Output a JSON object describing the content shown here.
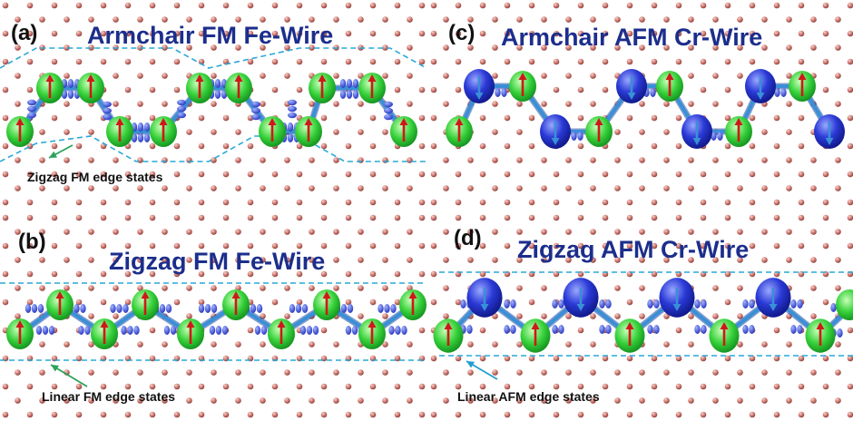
{
  "panels": {
    "a": {
      "label": "(a)",
      "title": "Armchair FM Fe-Wire",
      "note": "Zigzag FM edge states"
    },
    "b": {
      "label": "(b)",
      "title": "Zigzag FM Fe-Wire",
      "note": "Linear FM edge states"
    },
    "c": {
      "label": "(c)",
      "title": "Armchair AFM Cr-Wire"
    },
    "d": {
      "label": "(d)",
      "title": "Zigzag AFM Cr-Wire",
      "note": "Linear AFM edge states"
    }
  },
  "colors": {
    "carbon_atom": "#c9726c",
    "spin_up_density": "#33cc33",
    "spin_down_density": "#2233cc",
    "bond": "#3a8fd6",
    "moment_arrow": "#d01818",
    "edge_guide": "#29a8d8",
    "title": "#1c2e8c"
  },
  "icons": [
    "spin-up-arrow-icon",
    "spin-down-arrow-icon",
    "pointer-arrow-icon"
  ]
}
